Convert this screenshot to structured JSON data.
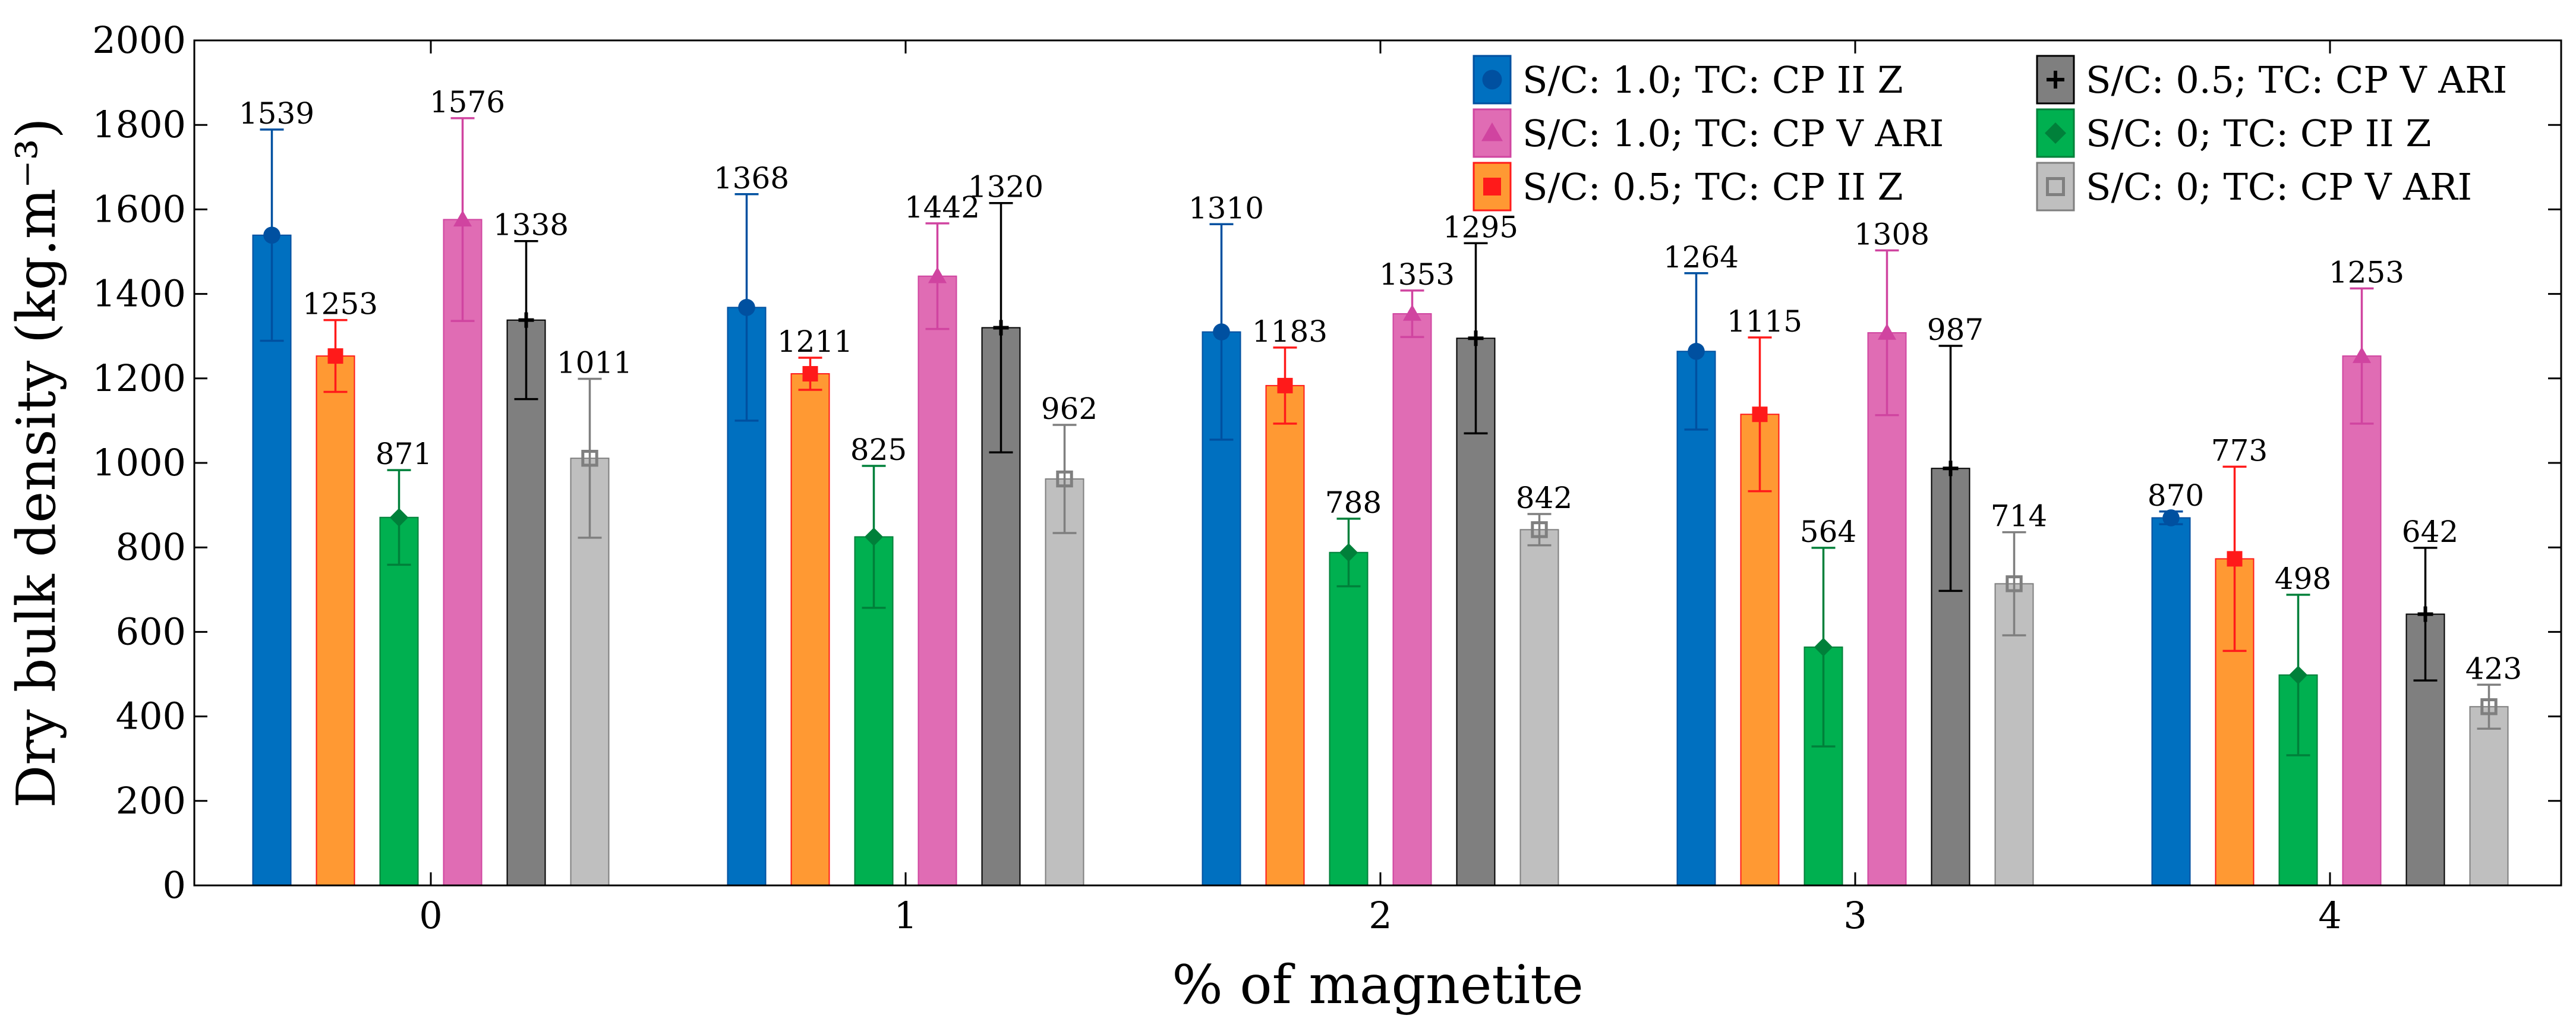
{
  "chart_data": {
    "type": "bar",
    "xlabel": "% of magnetite",
    "ylabel": "Dry bulk density (kg.m⁻³)",
    "ylim": [
      0,
      2000
    ],
    "yticks": [
      0,
      200,
      400,
      600,
      800,
      1000,
      1200,
      1400,
      1600,
      1800,
      2000
    ],
    "categories": [
      "0",
      "1",
      "2",
      "3",
      "4"
    ],
    "grid": false,
    "legend_position": "top-right",
    "series": [
      {
        "name": "S/C: 1.0; TC: CP II Z",
        "color": "#0070C0",
        "marker_color": "#0050A0",
        "marker": "circle",
        "values": [
          1539,
          1368,
          1310,
          1264,
          870
        ],
        "error": [
          250,
          268,
          255,
          185,
          15
        ]
      },
      {
        "name": "S/C: 0.5; TC: CP II Z",
        "color": "#FF9933",
        "marker_color": "#FF1A1A",
        "marker": "square",
        "values": [
          1253,
          1211,
          1183,
          1115,
          773
        ],
        "error": [
          85,
          38,
          90,
          182,
          218
        ]
      },
      {
        "name": "S/C: 0; TC: CP II Z",
        "color": "#00B050",
        "marker_color": "#00803A",
        "marker": "diamond",
        "values": [
          871,
          825,
          788,
          564,
          498
        ],
        "error": [
          112,
          168,
          80,
          235,
          190
        ]
      },
      {
        "name": "S/C: 1.0; TC: CP V ARI",
        "color": "#E06CB4",
        "marker_color": "#D044A0",
        "marker": "triangle",
        "values": [
          1576,
          1442,
          1353,
          1308,
          1253
        ],
        "error": [
          240,
          125,
          55,
          195,
          160
        ]
      },
      {
        "name": "S/C: 0.5; TC: CP V ARI",
        "color": "#7F7F7F",
        "marker_color": "#000000",
        "marker": "plus",
        "values": [
          1338,
          1320,
          1295,
          987,
          642
        ],
        "error": [
          187,
          295,
          225,
          290,
          157
        ]
      },
      {
        "name": "S/C: 0; TC: CP V ARI",
        "color": "#BFBFBF",
        "marker_color": "#7F7F7F",
        "marker": "open-square",
        "values": [
          1011,
          962,
          842,
          714,
          423
        ],
        "error": [
          188,
          128,
          37,
          122,
          52
        ]
      }
    ],
    "legend_order": [
      0,
      3,
      1,
      4,
      2,
      5
    ]
  }
}
